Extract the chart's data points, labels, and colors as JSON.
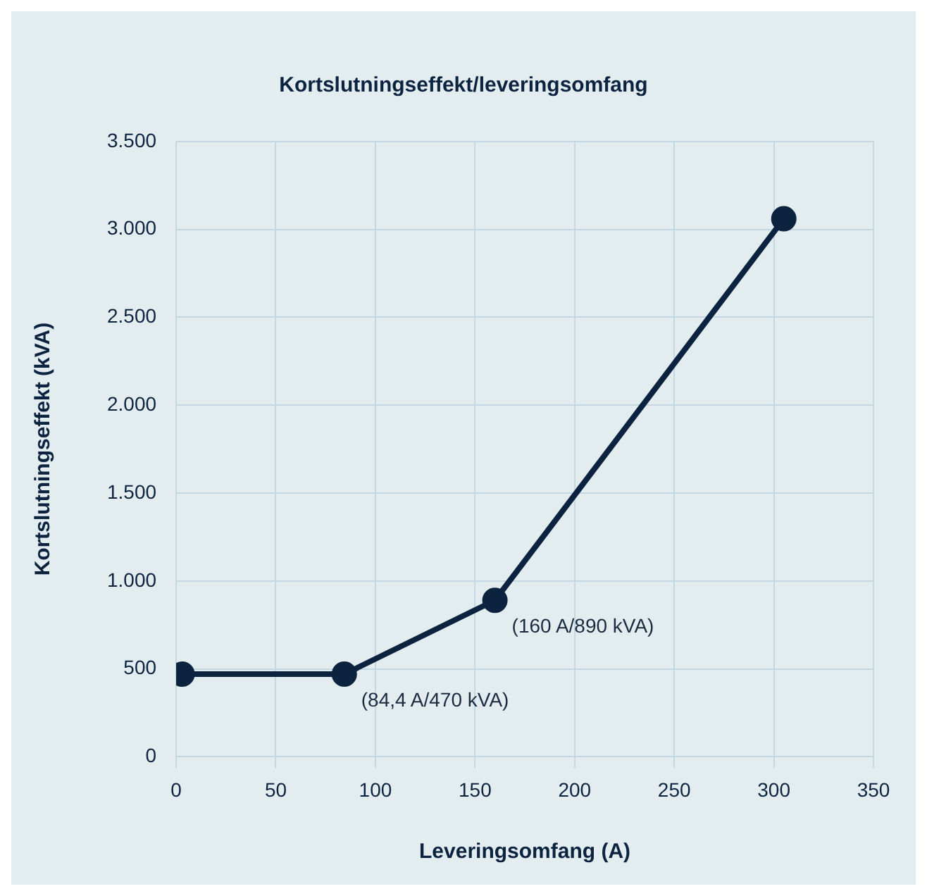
{
  "chart_data": {
    "type": "line",
    "title": "Kortslutningseffekt/leveringsomfang",
    "xlabel": "Leveringsomfang (A)",
    "ylabel": "Kortslutningseffekt (kVA)",
    "x": [
      3,
      84.4,
      160,
      305
    ],
    "series": [
      {
        "color": "#0c2340",
        "values": [
          470,
          470,
          890,
          3060
        ]
      }
    ],
    "xlim": [
      0,
      350
    ],
    "xticks": [
      0,
      50,
      100,
      150,
      200,
      250,
      300,
      350
    ],
    "ylim": [
      0,
      3500
    ],
    "yticks": [
      0,
      500,
      {
        "value": 1000,
        "label": "1.000"
      },
      {
        "value": 1500,
        "label": "1.500"
      },
      {
        "value": 2000,
        "label": "2.000"
      },
      {
        "value": 2500,
        "label": "2.500"
      },
      {
        "value": 3000,
        "label": "3.000"
      },
      {
        "value": 3500,
        "label": "3.500"
      }
    ],
    "annotations": [
      {
        "text": "(84,4 A/470 kVA)",
        "x": 84.4,
        "y": 470
      },
      {
        "text": "(160 A/890 kVA)",
        "x": 160,
        "y": 890
      }
    ],
    "grid": true,
    "legend": false,
    "marker": "circle",
    "line_style": "solid"
  }
}
